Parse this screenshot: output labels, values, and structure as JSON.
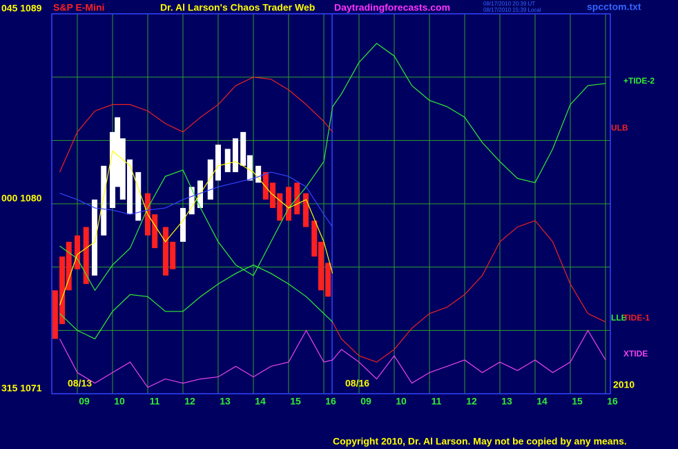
{
  "chart_data": {
    "type": "line",
    "title": "Dr. Al Larson's Chaos Trader Web",
    "instrument": "S&P E-Mini",
    "website": "Daytradingforecasts.com",
    "timestamps": [
      "08/17/2010 20:39 UT",
      "08/17/2010 15:39 Local"
    ],
    "filename": "spcctom.txt",
    "date_labels": [
      "08/13",
      "08/16",
      "2010"
    ],
    "copyright": "Copyright 2010, Dr. Al Larson. May not be copied by any means.",
    "grid": true,
    "xlim": [
      -0.725,
      15.137
    ],
    "ylim": [
      1071,
      1089
    ],
    "xticks": [
      {
        "value": 0,
        "label": "09"
      },
      {
        "value": 1,
        "label": "10"
      },
      {
        "value": 2,
        "label": "11"
      },
      {
        "value": 3,
        "label": "12"
      },
      {
        "value": 4,
        "label": "13"
      },
      {
        "value": 5,
        "label": "14"
      },
      {
        "value": 6,
        "label": "15"
      },
      {
        "value": 7,
        "label": "16"
      },
      {
        "value": 8,
        "label": "09"
      },
      {
        "value": 9,
        "label": "10"
      },
      {
        "value": 10,
        "label": "11"
      },
      {
        "value": 11,
        "label": "12"
      },
      {
        "value": 12,
        "label": "13"
      },
      {
        "value": 13,
        "label": "14"
      },
      {
        "value": 14,
        "label": "15"
      },
      {
        "value": 15,
        "label": "16"
      }
    ],
    "yticks": [
      {
        "value": 1089,
        "label": "045 1089"
      },
      {
        "value": 1086,
        "label": null
      },
      {
        "value": 1083,
        "label": null
      },
      {
        "value": 1080,
        "label": "000 1080"
      },
      {
        "value": 1077,
        "label": null
      },
      {
        "value": 1074,
        "label": null
      },
      {
        "value": 1071,
        "label": "315 1071"
      }
    ],
    "x": [
      -0.5,
      0,
      0.5,
      1,
      1.5,
      2,
      2.5,
      3,
      3.5,
      4,
      4.5,
      5,
      5.5,
      6,
      6.5,
      7,
      7.25,
      7.5,
      8,
      8.5,
      9,
      9.5,
      10,
      10.5,
      11,
      11.5,
      12,
      12.5,
      13,
      13.5,
      14,
      14.5,
      15
    ],
    "series": [
      {
        "name": "+TIDE-2",
        "color": "#33ee33",
        "values": [
          1078.0,
          1077.4,
          1075.9,
          1077.1,
          1077.9,
          1079.8,
          1081.3,
          1081.6,
          1079.8,
          1078.2,
          1077.1,
          1076.6,
          1078.2,
          1079.8,
          1080.8,
          1082.0,
          1084.6,
          1085.2,
          1086.7,
          1087.6,
          1087.0,
          1085.6,
          1084.9,
          1084.6,
          1084.1,
          1082.9,
          1082.0,
          1081.2,
          1081.0,
          1082.6,
          1084.7,
          1085.6,
          1085.7
        ]
      },
      {
        "name": "ULB",
        "color": "#ee2222",
        "values": [
          1081.5,
          1083.4,
          1084.4,
          1084.7,
          1084.7,
          1084.4,
          1083.8,
          1083.4,
          1084.1,
          1084.7,
          1085.6,
          1086.0,
          1085.9,
          1085.4,
          1084.7,
          1083.9,
          1083.4,
          null,
          null,
          null,
          null,
          null,
          null,
          null,
          null,
          null,
          null,
          null,
          null,
          null,
          null,
          null,
          null
        ]
      },
      {
        "name": "LLB",
        "color": "#33ee33",
        "values": [
          1074.8,
          1074.0,
          1073.6,
          1074.9,
          1075.7,
          1075.6,
          1074.9,
          1074.9,
          1075.6,
          1076.2,
          1076.7,
          1077.1,
          1076.7,
          1076.2,
          1075.6,
          1074.8,
          1074.4,
          null,
          null,
          null,
          null,
          null,
          null,
          null,
          null,
          null,
          null,
          null,
          null,
          null,
          null,
          null,
          null
        ]
      },
      {
        "name": "TIDE-1",
        "color": "#ee2222",
        "values": [
          null,
          null,
          null,
          null,
          null,
          null,
          null,
          null,
          null,
          null,
          null,
          null,
          null,
          null,
          null,
          null,
          1074.4,
          1073.6,
          1072.8,
          1072.5,
          1073.1,
          1074.1,
          1074.8,
          1075.1,
          1075.7,
          1076.6,
          1078.2,
          1078.9,
          1079.2,
          1078.2,
          1076.2,
          1074.8,
          1074.4
        ]
      },
      {
        "name": "XTIDE",
        "color": "#ee44ee",
        "values": [
          1073.6,
          1072.0,
          1071.5,
          1072.0,
          1072.5,
          1071.3,
          1071.7,
          1071.5,
          1071.7,
          1071.8,
          1072.3,
          1071.8,
          1072.3,
          1072.5,
          1074.0,
          1072.5,
          1072.6,
          1073.1,
          1072.5,
          1071.7,
          1072.8,
          1071.5,
          1072.0,
          1072.3,
          1072.6,
          1072.0,
          1072.5,
          1072.1,
          1072.6,
          1072.0,
          1072.5,
          1074.0,
          1072.6
        ]
      },
      {
        "color": "#ffff00",
        "values": [
          1075.2,
          1077.6,
          1078.2,
          1082.5,
          1081.8,
          1079.5,
          1078.2,
          1079.2,
          1080.5,
          1081.8,
          1082.0,
          1081.5,
          1080.5,
          1079.8,
          1080.2,
          1078.2,
          1076.7,
          null,
          null,
          null,
          null,
          null,
          null,
          null,
          null,
          null,
          null,
          null,
          null,
          null,
          null,
          null,
          null
        ]
      },
      {
        "color": "#3344ff",
        "values": [
          1080.5,
          1080.2,
          1079.8,
          1079.7,
          1079.5,
          1079.7,
          1079.8,
          1080.2,
          1080.5,
          1080.8,
          1081.0,
          1081.2,
          1081.5,
          1081.3,
          1080.8,
          1079.5,
          1078.9,
          null,
          null,
          null,
          null,
          null,
          null,
          null,
          null,
          null,
          null,
          null,
          null,
          null,
          null,
          null,
          null
        ]
      }
    ],
    "bars": {
      "x": [
        -0.63,
        -0.43,
        -0.24,
        0,
        0.25,
        0.49,
        0.75,
        1,
        1.14,
        1.29,
        1.49,
        1.73,
        2,
        2.2,
        2.51,
        2.71,
        3,
        3.25,
        3.49,
        3.78,
        4,
        4.27,
        4.49,
        4.71,
        4.9,
        5.14,
        5.35,
        5.55,
        5.75,
        6,
        6.24,
        6.49,
        6.73,
        6.92,
        7.12
      ],
      "high": [
        1075.9,
        1077.5,
        1078.2,
        1078.5,
        1078.9,
        1080.2,
        1081.8,
        1083.4,
        1084.1,
        1083.1,
        1082.1,
        1081.5,
        1080.5,
        1079.5,
        1078.9,
        1078.2,
        1079.8,
        1080.8,
        1081.1,
        1082.1,
        1082.8,
        1082.6,
        1083.1,
        1083.4,
        1082.3,
        1081.8,
        1081.5,
        1081.0,
        1080.5,
        1080.8,
        1081.0,
        1080.5,
        1079.2,
        1078.2,
        1077.2
      ],
      "low": [
        1073.6,
        1074.3,
        1075.9,
        1076.9,
        1076.2,
        1076.6,
        1078.5,
        1079.8,
        1080.8,
        1080.2,
        1079.5,
        1079.2,
        1078.5,
        1077.9,
        1076.6,
        1076.9,
        1078.2,
        1079.5,
        1079.8,
        1080.2,
        1081.1,
        1081.5,
        1081.5,
        1081.8,
        1081.1,
        1081.0,
        1080.2,
        1079.8,
        1079.2,
        1079.2,
        1079.5,
        1078.9,
        1077.5,
        1075.9,
        1075.6
      ],
      "colors": [
        "#ff2020",
        "#ff2020",
        "#ff2020",
        "#ff2020",
        "#ff2020",
        "#ffffff",
        "#ffffff",
        "#ffffff",
        "#ffffff",
        "#ffffff",
        "#ffffff",
        "#ffffff",
        "#ff2020",
        "#ff2020",
        "#ff2020",
        "#ff2020",
        "#ffffff",
        "#ffffff",
        "#ffffff",
        "#ffffff",
        "#ffffff",
        "#ffffff",
        "#ffffff",
        "#ffffff",
        "#ffffff",
        "#ffffff",
        "#ff2020",
        "#ff2020",
        "#ff2020",
        "#ff2020",
        "#ff2020",
        "#ff2020",
        "#ff2020",
        "#ff2020",
        "#ff2020"
      ]
    }
  }
}
